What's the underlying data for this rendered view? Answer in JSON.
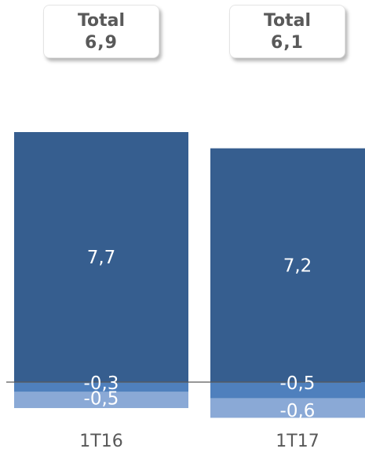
{
  "chart_data": {
    "type": "bar",
    "stacked": true,
    "categories": [
      "1T16",
      "1T17"
    ],
    "series": [
      {
        "values": [
          7.7,
          7.2
        ],
        "labels": [
          "7,7",
          "7,2"
        ],
        "color": "#365e8f"
      },
      {
        "values": [
          -0.3,
          -0.5
        ],
        "labels": [
          "-0,3",
          "-0,5"
        ],
        "color": "#4f80bd"
      },
      {
        "values": [
          -0.5,
          -0.6
        ],
        "labels": [
          "-0,5",
          "-0,6"
        ],
        "color": "#8aa9d6"
      }
    ],
    "totals": [
      {
        "label": "Total",
        "value": "6,9"
      },
      {
        "label": "Total",
        "value": "6,1"
      }
    ],
    "baseline_color": "#595959"
  }
}
